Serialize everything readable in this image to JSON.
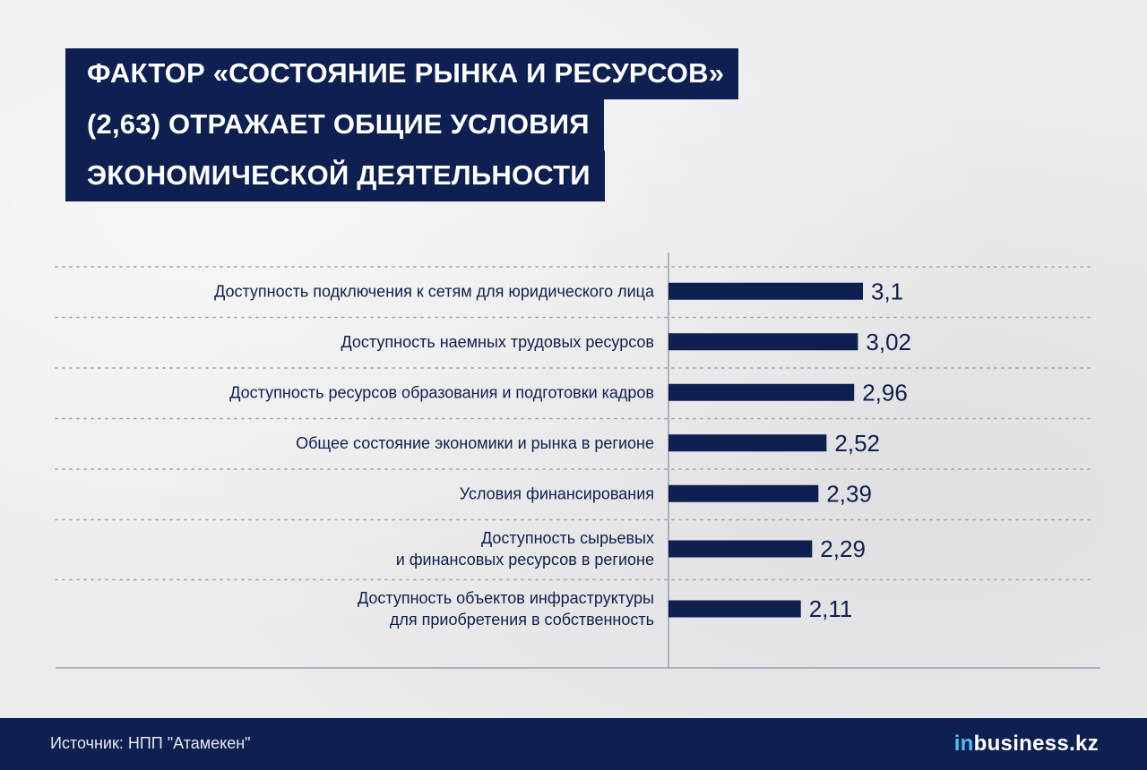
{
  "title": {
    "lines": [
      "ФАКТОР «СОСТОЯНИЕ РЫНКА И РЕСУРСОВ»",
      "(2,63) ОТРАЖАЕТ ОБЩИЕ УСЛОВИЯ",
      "ЭКОНОМИЧЕСКОЙ ДЕЯТЕЛЬНОСТИ"
    ]
  },
  "chart_data": {
    "type": "bar",
    "orientation": "horizontal",
    "categories": [
      [
        "Доступность подключения к сетям для юридического лица"
      ],
      [
        "Доступность наемных трудовых ресурсов"
      ],
      [
        "Доступность ресурсов образования и подготовки кадров"
      ],
      [
        "Общее состояние экономики и рынка в регионе"
      ],
      [
        "Условия финансирования"
      ],
      [
        "Доступность сырьевых",
        "и финансовых ресурсов в регионе"
      ],
      [
        "Доступность объектов инфраструктуры",
        "для приобретения в собственность"
      ]
    ],
    "values": [
      3.1,
      3.02,
      2.96,
      2.52,
      2.39,
      2.29,
      2.11
    ],
    "value_labels": [
      "3,1",
      "3,02",
      "2,96",
      "2,52",
      "2,39",
      "2,29",
      "2,11"
    ],
    "grid": "dotted horizontal separators",
    "colors": {
      "bar": "#0e1f52",
      "title_bg": "#0e1f52",
      "footer_bg": "#0e1f52"
    }
  },
  "footer": {
    "source": "Источник: НПП \"Атамекен\"",
    "logo_prefix": "in",
    "logo_rest": "business.kz"
  }
}
